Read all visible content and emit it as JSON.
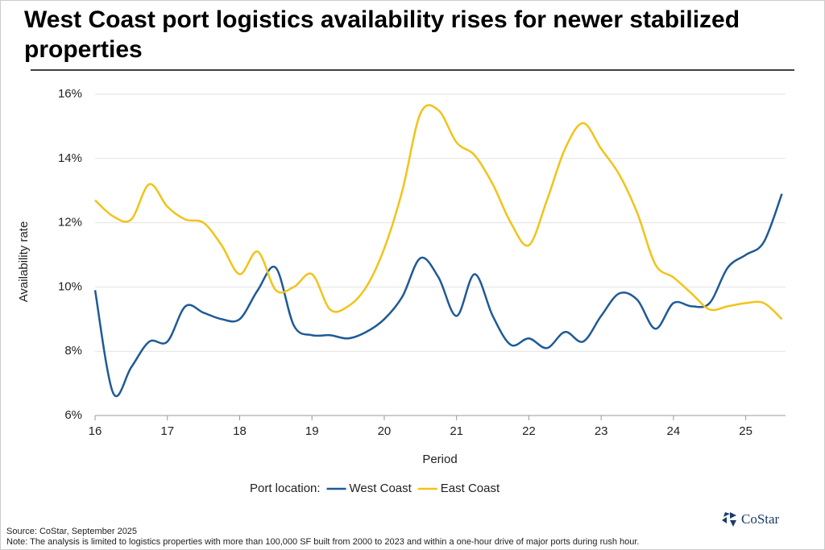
{
  "chart_data": {
    "type": "line",
    "title": "West Coast port logistics availability rises for newer stabilized properties",
    "x_label": "Period",
    "y_label": "Availability rate",
    "legend_title": "Port location:",
    "x": [
      16,
      16.25,
      16.5,
      16.75,
      17,
      17.25,
      17.5,
      17.75,
      18,
      18.25,
      18.5,
      18.75,
      19,
      19.25,
      19.5,
      19.75,
      20,
      20.25,
      20.5,
      20.75,
      21,
      21.25,
      21.5,
      21.75,
      22,
      22.25,
      22.5,
      22.75,
      23,
      23.25,
      23.5,
      23.75,
      24,
      24.25,
      24.5,
      24.75,
      25,
      25.25,
      25.5
    ],
    "series": [
      {
        "name": "West Coast",
        "color": "#1f5a96",
        "values": [
          9.9,
          6.7,
          7.5,
          8.3,
          8.3,
          9.4,
          9.2,
          9.0,
          9.0,
          9.9,
          10.6,
          8.8,
          8.5,
          8.5,
          8.4,
          8.6,
          9.0,
          9.7,
          10.9,
          10.3,
          9.1,
          10.4,
          9.1,
          8.2,
          8.4,
          8.1,
          8.6,
          8.3,
          9.1,
          9.8,
          9.6,
          8.7,
          9.5,
          9.4,
          9.5,
          10.6,
          11.0,
          11.4,
          12.9
        ]
      },
      {
        "name": "East Coast",
        "color": "#f2c318",
        "values": [
          12.7,
          12.2,
          12.1,
          13.2,
          12.5,
          12.1,
          12.0,
          11.3,
          10.4,
          11.1,
          9.9,
          10.0,
          10.4,
          9.3,
          9.4,
          10.0,
          11.2,
          13.0,
          15.4,
          15.5,
          14.5,
          14.1,
          13.2,
          12.0,
          11.3,
          12.7,
          14.3,
          15.1,
          14.3,
          13.5,
          12.3,
          10.7,
          10.3,
          9.8,
          9.3,
          9.4,
          9.5,
          9.5,
          9.0
        ]
      }
    ],
    "xlim": [
      16,
      25.55
    ],
    "xticks": [
      16,
      17,
      18,
      19,
      20,
      21,
      22,
      23,
      24,
      25
    ],
    "ylim": [
      6,
      16
    ],
    "yticks": [
      {
        "value": 6,
        "label": "6%"
      },
      {
        "value": 8,
        "label": "8%"
      },
      {
        "value": 10,
        "label": "10%"
      },
      {
        "value": 12,
        "label": "12%"
      },
      {
        "value": 14,
        "label": "14%"
      },
      {
        "value": 16,
        "label": "16%"
      }
    ],
    "grid": true,
    "source": "Source: CoStar, September 2025",
    "note": "Note: The analysis is limited to logistics properties with more than 100,000 SF built from 2000 to 2023 and within a one-hour drive of major ports during rush hour.",
    "logo": "CoStar"
  }
}
